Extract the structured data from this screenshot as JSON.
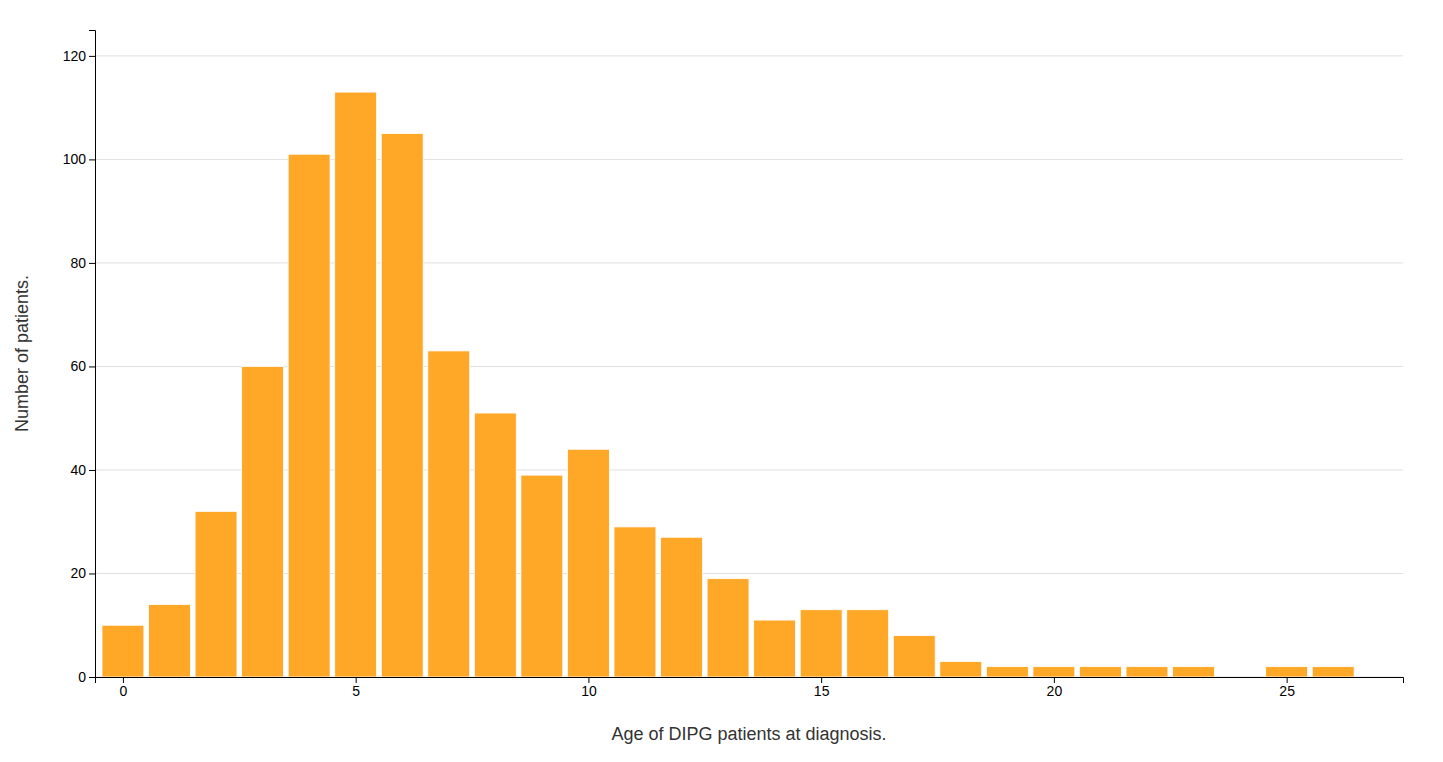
{
  "chart_data": {
    "type": "bar",
    "x": [
      0,
      1,
      2,
      3,
      4,
      5,
      6,
      7,
      8,
      9,
      10,
      11,
      12,
      13,
      14,
      15,
      16,
      17,
      18,
      19,
      20,
      21,
      22,
      23,
      24,
      25,
      26
    ],
    "values": [
      10,
      14,
      32,
      60,
      101,
      113,
      105,
      63,
      51,
      39,
      44,
      29,
      27,
      19,
      11,
      13,
      13,
      8,
      3,
      2,
      2,
      2,
      2,
      2,
      0,
      2,
      2
    ],
    "color": "#FFA726",
    "xlabel": "Age of DIPG patients at diagnosis.",
    "ylabel": "Number of patients.",
    "xlim": [
      -0.6,
      27.5
    ],
    "ylim": [
      0,
      125
    ],
    "xticks": [
      0,
      5,
      10,
      15,
      20,
      25
    ],
    "yticks": [
      0,
      20,
      40,
      60,
      80,
      100,
      120
    ],
    "grid": true
  }
}
